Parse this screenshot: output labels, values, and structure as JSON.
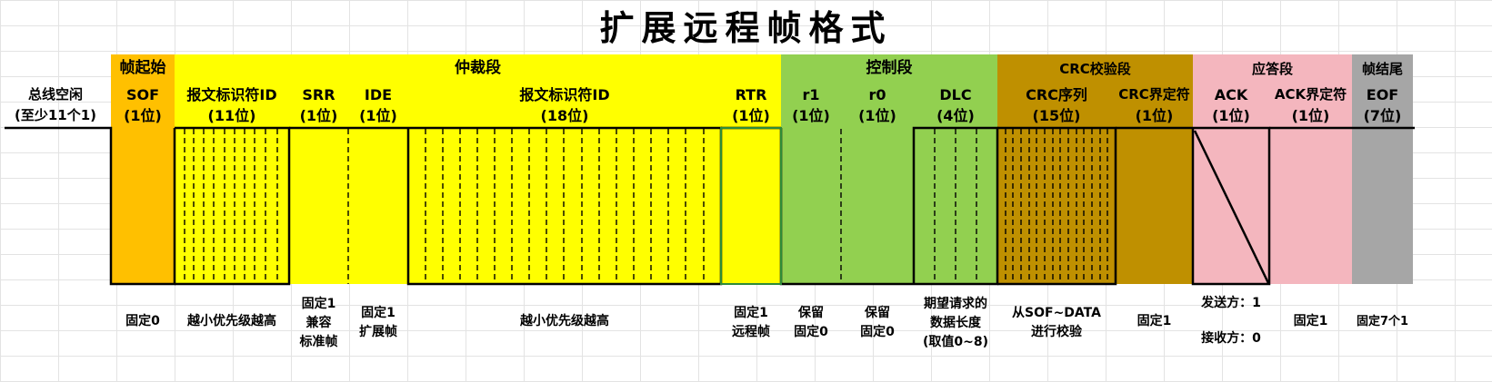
{
  "title": "扩展远程帧格式",
  "colors": {
    "sof": "#FFC000",
    "arbitration": "#FFFF00",
    "control": "#92D050",
    "crc": "#BF9000",
    "ack": "#F4B6BE",
    "eof": "#A6A6A6"
  },
  "segments": {
    "sof": "帧起始",
    "arbitration": "仲裁段",
    "control": "控制段",
    "crc": "CRC校验段",
    "ack": "应答段",
    "eof": "帧结尾"
  },
  "idle": {
    "line1": "总线空闲",
    "line2": "(至少11个1)"
  },
  "fields": {
    "sof": {
      "name": "SOF",
      "bits": "(1位)",
      "desc": "固定0"
    },
    "id11": {
      "name": "报文标识符ID",
      "bits": "(11位)",
      "desc": "越小优先级越高"
    },
    "srr": {
      "name": "SRR",
      "bits": "(1位)",
      "desc1": "固定1",
      "desc2": "兼容",
      "desc3": "标准帧"
    },
    "ide": {
      "name": "IDE",
      "bits": "(1位)",
      "desc1": "固定1",
      "desc2": "扩展帧"
    },
    "id18": {
      "name": "报文标识符ID",
      "bits": "(18位)",
      "desc": "越小优先级越高"
    },
    "rtr": {
      "name": "RTR",
      "bits": "(1位)",
      "desc1": "固定1",
      "desc2": "远程帧"
    },
    "r1": {
      "name": "r1",
      "bits": "(1位)",
      "desc1": "保留",
      "desc2": "固定0"
    },
    "r0": {
      "name": "r0",
      "bits": "(1位)",
      "desc1": "保留",
      "desc2": "固定0"
    },
    "dlc": {
      "name": "DLC",
      "bits": "(4位)",
      "desc1": "期望请求的",
      "desc2": "数据长度",
      "desc3": "(取值0~8)"
    },
    "crcseq": {
      "name": "CRC序列",
      "bits": "(15位)",
      "desc1": "从SOF~DATA",
      "desc2": "进行校验"
    },
    "crcdel": {
      "name": "CRC界定符",
      "bits": "(1位)",
      "desc": "固定1"
    },
    "ack": {
      "name": "ACK",
      "bits": "(1位)",
      "desc1": "发送方：1",
      "desc2": "接收方：0"
    },
    "ackdel": {
      "name": "ACK界定符",
      "bits": "(1位)",
      "desc": "固定1"
    },
    "eof": {
      "name": "EOF",
      "bits": "(7位)",
      "desc": "固定7个1"
    }
  }
}
